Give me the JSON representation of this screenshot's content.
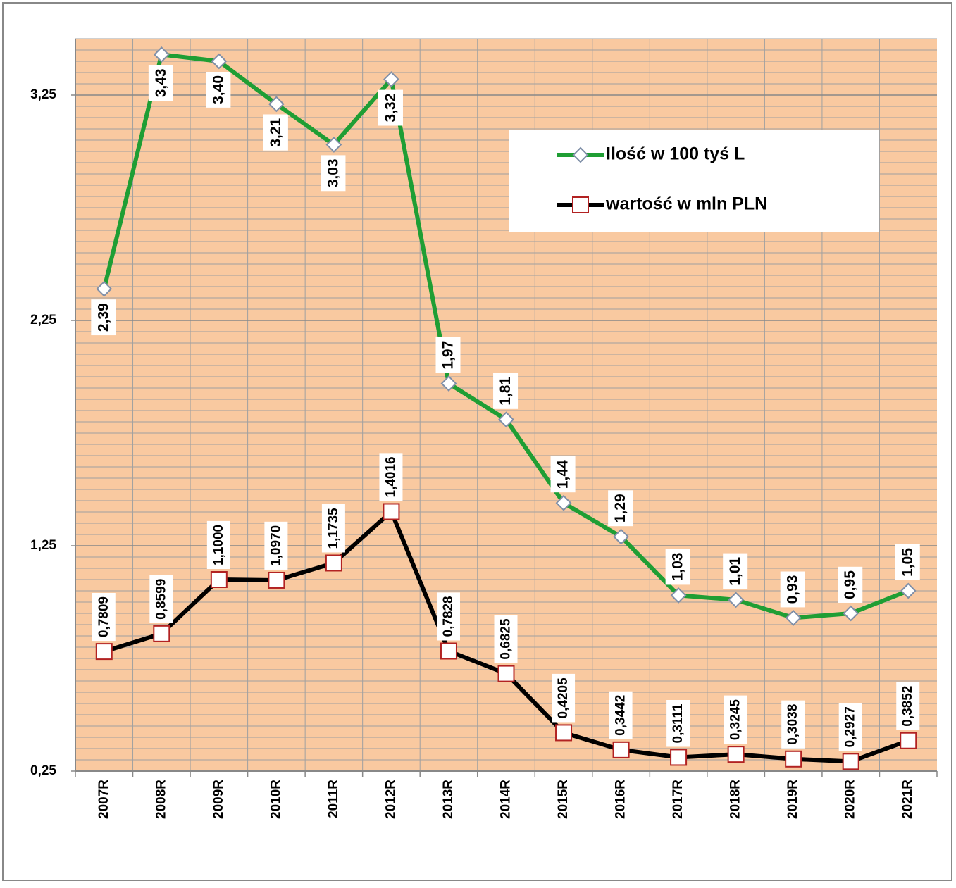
{
  "chart_data": {
    "type": "line",
    "categories": [
      "2007R",
      "2008R",
      "2009R",
      "2010R",
      "2011R",
      "2012R",
      "2013R",
      "2014R",
      "2015R",
      "2016R",
      "2017R",
      "2018R",
      "2019R",
      "2020R",
      "2021R"
    ],
    "series": [
      {
        "name": "Ilość w 100 tyś L",
        "color": "#1f9e34",
        "marker": "diamond",
        "marker_color": "#7f8fa8",
        "values": [
          2.39,
          3.43,
          3.4,
          3.21,
          3.03,
          3.32,
          1.97,
          1.81,
          1.44,
          1.29,
          1.03,
          1.01,
          0.93,
          0.95,
          1.05
        ],
        "value_labels": [
          "2,39",
          "3,43",
          "3,40",
          "3,21",
          "3,03",
          "3,32",
          "1,97",
          "1,81",
          "1,44",
          "1,29",
          "1,03",
          "1,01",
          "0,93",
          "0,95",
          "1,05"
        ]
      },
      {
        "name": "wartość w mln PLN",
        "color": "#000000",
        "marker": "square",
        "marker_color": "#b22222",
        "values": [
          0.7809,
          0.8599,
          1.1,
          1.097,
          1.1735,
          1.4016,
          0.7828,
          0.6825,
          0.4205,
          0.3442,
          0.3111,
          0.3245,
          0.3038,
          0.2927,
          0.3852
        ],
        "value_labels": [
          "0,7809",
          "0,8599",
          "1,1000",
          "1,0970",
          "1,1735",
          "1,4016",
          "0,7828",
          "0,6825",
          "0,4205",
          "0,3442",
          "0,3111",
          "0,3245",
          "0,3038",
          "0,2927",
          "0,3852"
        ]
      }
    ],
    "ylim": [
      0.25,
      3.5
    ],
    "yticks": [
      {
        "value": 0.25,
        "label": "0,25"
      },
      {
        "value": 1.25,
        "label": "1,25"
      },
      {
        "value": 2.25,
        "label": "2,25"
      },
      {
        "value": 3.25,
        "label": "3,25"
      }
    ],
    "grid": true,
    "background": "#f9c9a0",
    "legend": "upper right"
  }
}
